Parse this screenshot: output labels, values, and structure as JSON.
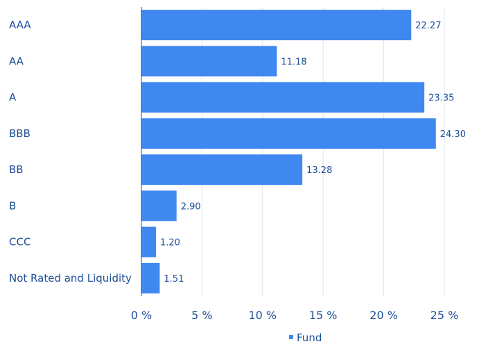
{
  "chart_data": {
    "type": "bar",
    "orientation": "horizontal",
    "categories": [
      "AAA",
      "AA",
      "A",
      "BBB",
      "BB",
      "B",
      "CCC",
      "Not Rated and Liquidity"
    ],
    "series": [
      {
        "name": "Fund",
        "color": "#3f88f0",
        "values": [
          22.27,
          11.18,
          23.35,
          24.3,
          13.28,
          2.9,
          1.2,
          1.51
        ],
        "value_labels": [
          "22.27",
          "11.18",
          "23.35",
          "24.30",
          "13.28",
          "2.90",
          "1.20",
          "1.51"
        ]
      }
    ],
    "xlim": [
      0,
      26
    ],
    "xticks": [
      0,
      5,
      10,
      15,
      20,
      25
    ],
    "xtick_labels": [
      "0 %",
      "5 %",
      "10 %",
      "15 %",
      "20 %",
      "25 %"
    ],
    "grid": "vertical",
    "legend_position": "bottom-center"
  }
}
